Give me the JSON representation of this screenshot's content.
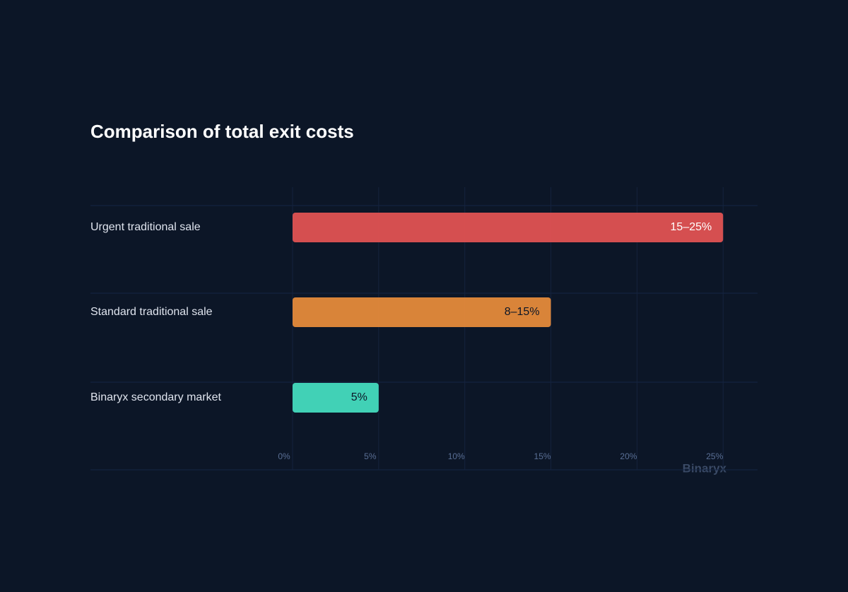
{
  "chart_data": {
    "type": "barh",
    "title": "Comparison of total exit costs",
    "categories": [
      "Urgent traditional sale",
      "Standard traditional sale",
      "Binaryx secondary market"
    ],
    "values": [
      25,
      15,
      5
    ],
    "value_labels": [
      "15–25%",
      "8–15%",
      "5%"
    ],
    "colors": [
      "#e05252",
      "#e58a3a",
      "#45dbbe"
    ],
    "xlim": [
      0,
      27
    ],
    "xticks": [
      {
        "value": 0,
        "label": "0%"
      },
      {
        "value": 5,
        "label": "5%"
      },
      {
        "value": 10,
        "label": "10%"
      },
      {
        "value": 15,
        "label": "15%"
      },
      {
        "value": 20,
        "label": "20%"
      },
      {
        "value": 25,
        "label": "25%"
      }
    ],
    "grid": true,
    "watermark": "Binaryx"
  }
}
